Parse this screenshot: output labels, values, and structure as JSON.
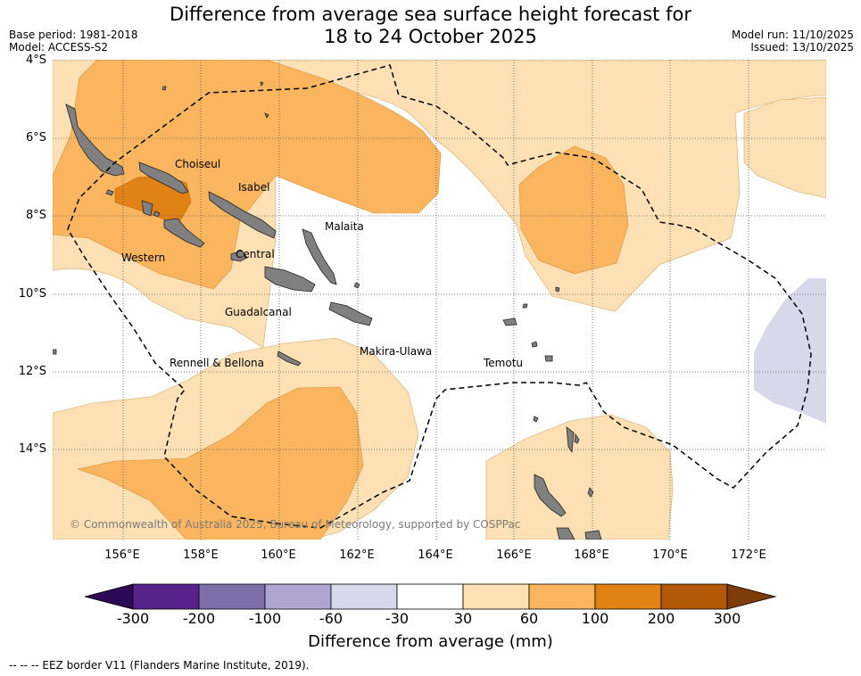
{
  "title_line1": "Difference from average sea surface height forecast for",
  "title_line2": "18 to 24 October 2025",
  "base_period": "Base period: 1981-2018",
  "model": "Model: ACCESS-S2",
  "model_run": "Model run: 11/10/2025",
  "issued": "Issued: 13/10/2025",
  "lat_labels": [
    "4°S",
    "6°S",
    "8°S",
    "10°S",
    "12°S",
    "14°S"
  ],
  "lon_labels": [
    "156°E",
    "158°E",
    "160°E",
    "162°E",
    "164°E",
    "166°E",
    "168°E",
    "170°E",
    "172°E"
  ],
  "province_labels": [
    "Choiseul",
    "Isabel",
    "Malaita",
    "Western",
    "Central",
    "Guadalcanal",
    "Makira-Ulawa",
    "Rennell & Bellona",
    "Temotu"
  ],
  "copyright": "© Commonwealth of Australia 2025, Bureau of Meteorology, supported by COSPPac",
  "colorbar": {
    "ticks": [
      "-300",
      "-200",
      "-100",
      "-60",
      "-30",
      "30",
      "60",
      "100",
      "200",
      "300"
    ],
    "colors": [
      "#2d0a55",
      "#57228a",
      "#7e6fab",
      "#aea5d0",
      "#d8d8ea",
      "#ffffff",
      "#fde0b3",
      "#fbb55f",
      "#e08214",
      "#b35806",
      "#7f3b08"
    ],
    "title": "Difference from average (mm)"
  },
  "legend_footer": "--  --  -- EEZ border V11 (Flanders Marine Institute, 2019)."
}
